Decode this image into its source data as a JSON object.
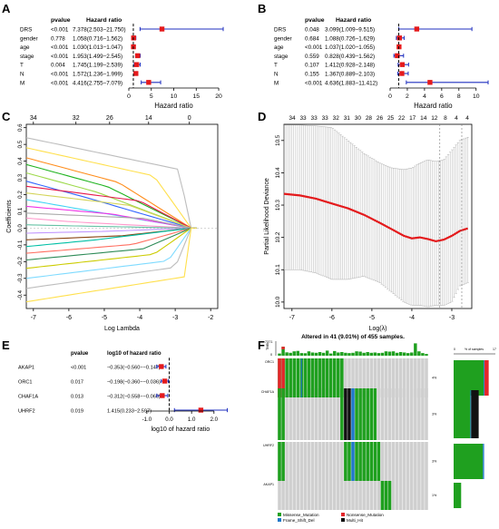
{
  "panels": {
    "A": "A",
    "B": "B",
    "C": "C",
    "D": "D",
    "E": "E",
    "F": "F"
  },
  "chart_data": [
    {
      "panel": "A",
      "type": "scatter",
      "subtype": "forest",
      "col_pvalue": "pvalue",
      "col_hr": "Hazard ratio",
      "xlabel": "Hazard ratio",
      "xticks": [
        0,
        5,
        10,
        15,
        20
      ],
      "xlim": [
        0,
        21
      ],
      "ref_line": 1,
      "point_color": "#e41a1c",
      "ci_color": "#1f2fbf",
      "rows": [
        {
          "label": "DRS",
          "p": "<0.001",
          "hr_text": "7.378(2.503−21.750)",
          "hr": 7.378,
          "lo": 2.503,
          "hi": 21.75
        },
        {
          "label": "gender",
          "p": "0.778",
          "hr_text": "1.058(0.716−1.562)",
          "hr": 1.058,
          "lo": 0.716,
          "hi": 1.562
        },
        {
          "label": "age",
          "p": "<0.001",
          "hr_text": "1.030(1.013−1.047)",
          "hr": 1.03,
          "lo": 1.013,
          "hi": 1.047
        },
        {
          "label": "stage",
          "p": "<0.001",
          "hr_text": "1.953(1.499−2.545)",
          "hr": 1.953,
          "lo": 1.499,
          "hi": 2.545
        },
        {
          "label": "T",
          "p": "0.004",
          "hr_text": "1.745(1.199−2.539)",
          "hr": 1.745,
          "lo": 1.199,
          "hi": 2.539
        },
        {
          "label": "N",
          "p": "<0.001",
          "hr_text": "1.572(1.236−1.999)",
          "hr": 1.572,
          "lo": 1.236,
          "hi": 1.999
        },
        {
          "label": "M",
          "p": "<0.001",
          "hr_text": "4.416(2.755−7.079)",
          "hr": 4.416,
          "lo": 2.755,
          "hi": 7.079
        }
      ]
    },
    {
      "panel": "B",
      "type": "scatter",
      "subtype": "forest",
      "col_pvalue": "pvalue",
      "col_hr": "Hazard ratio",
      "xlabel": "Hazard ratio",
      "xticks": [
        0,
        2,
        4,
        6,
        8,
        10
      ],
      "xlim": [
        0,
        11.4
      ],
      "ref_line": 1,
      "point_color": "#e41a1c",
      "ci_color": "#1f2fbf",
      "rows": [
        {
          "label": "DRS",
          "p": "0.048",
          "hr_text": "3.099(1.009−9.515)",
          "hr": 3.099,
          "lo": 1.009,
          "hi": 9.515
        },
        {
          "label": "gender",
          "p": "0.684",
          "hr_text": "1.088(0.726−1.629)",
          "hr": 1.088,
          "lo": 0.726,
          "hi": 1.629
        },
        {
          "label": "age",
          "p": "<0.001",
          "hr_text": "1.037(1.020−1.055)",
          "hr": 1.037,
          "lo": 1.02,
          "hi": 1.055
        },
        {
          "label": "stage",
          "p": "0.559",
          "hr_text": "0.828(0.439−1.562)",
          "hr": 0.828,
          "lo": 0.439,
          "hi": 1.562
        },
        {
          "label": "T",
          "p": "0.107",
          "hr_text": "1.412(0.928−2.148)",
          "hr": 1.412,
          "lo": 0.928,
          "hi": 2.148
        },
        {
          "label": "N",
          "p": "0.155",
          "hr_text": "1.367(0.889−2.103)",
          "hr": 1.367,
          "lo": 0.889,
          "hi": 2.103
        },
        {
          "label": "M",
          "p": "<0.001",
          "hr_text": "4.636(1.883−11.412)",
          "hr": 4.636,
          "lo": 1.883,
          "hi": 11.412
        }
      ]
    },
    {
      "panel": "C",
      "type": "line",
      "subtype": "lasso-coefficient-paths",
      "xlabel": "Log Lambda",
      "ylabel": "Coefficients",
      "xlim": [
        -7.2,
        -1.8
      ],
      "ylim": [
        -0.48,
        0.62
      ],
      "xticks": [
        -7,
        -6,
        -5,
        -4,
        -3,
        -2
      ],
      "yticks": [
        -0.4,
        -0.3,
        -0.2,
        -0.1,
        0.0,
        0.1,
        0.2,
        0.3,
        0.4,
        0.5,
        0.6
      ],
      "ytick_labels": [
        "-0.4",
        "-0.3",
        "-0.2",
        "-0.1",
        "0.0",
        "0.1",
        "0.2",
        "0.3",
        "0.4",
        "0.5",
        "0.6"
      ],
      "top_ticks": [
        {
          "x": -7,
          "label": "34"
        },
        {
          "x": -5.8,
          "label": "32"
        },
        {
          "x": -4.85,
          "label": "26"
        },
        {
          "x": -3.75,
          "label": "14"
        },
        {
          "x": -2.6,
          "label": "0"
        }
      ],
      "zero_x": -2.55,
      "colors": [
        "#bdbdbd",
        "#ffe04d",
        "#ff8c1a",
        "#1fb31f",
        "#9dd94a",
        "#3366ff",
        "#e6194b",
        "#d4d45a",
        "#42d4f4",
        "#f032e6",
        "#a9a9a9",
        "#ff99cc",
        "#66c2a5",
        "#c299ff",
        "#8b4513",
        "#00bfa5",
        "#ff6f61",
        "#2e8b57",
        "#cccc00",
        "#7fdbff"
      ],
      "paths": [
        {
          "start": 0.54,
          "fade": -2.9
        },
        {
          "start": 0.48,
          "fade": -3.6
        },
        {
          "start": 0.42,
          "fade": -4.6
        },
        {
          "start": 0.38,
          "fade": -4.9
        },
        {
          "start": 0.33,
          "fade": -5.2
        },
        {
          "start": 0.28,
          "fade": -5.5
        },
        {
          "start": 0.25,
          "fade": -4.0
        },
        {
          "start": 0.21,
          "fade": -4.3
        },
        {
          "start": 0.17,
          "fade": -5.6
        },
        {
          "start": 0.13,
          "fade": -4.8
        },
        {
          "start": 0.09,
          "fade": -3.9
        },
        {
          "start": 0.06,
          "fade": -6.0
        },
        {
          "start": 0.02,
          "fade": -5.8
        },
        {
          "start": -0.03,
          "fade": -5.0
        },
        {
          "start": -0.07,
          "fade": -4.5
        },
        {
          "start": -0.11,
          "fade": -5.3
        },
        {
          "start": -0.15,
          "fade": -4.2
        },
        {
          "start": -0.19,
          "fade": -3.9
        },
        {
          "start": -0.24,
          "fade": -3.6
        },
        {
          "start": -0.3,
          "fade": -3.2
        },
        {
          "start": -0.36,
          "fade": -3.0
        },
        {
          "start": -0.44,
          "fade": -2.6
        }
      ]
    },
    {
      "panel": "D",
      "type": "line",
      "subtype": "cross-validation-deviance",
      "xlabel": "Log(λ)",
      "ylabel": "Partial Likelihood Deviance",
      "xlim": [
        -7.2,
        -2.5
      ],
      "ylim": [
        9.98,
        10.55
      ],
      "xticks": [
        -7,
        -6,
        -5,
        -4,
        -3
      ],
      "yticks": [
        10.0,
        10.1,
        10.2,
        10.3,
        10.4,
        10.5
      ],
      "ytick_labels": [
        "10.0",
        "10.1",
        "10.2",
        "10.3",
        "10.4",
        "10.5"
      ],
      "top_labels": [
        "34",
        "33",
        "33",
        "33",
        "32",
        "31",
        "30",
        "28",
        "26",
        "25",
        "22",
        "17",
        "14",
        "12",
        "8",
        "4",
        "4"
      ],
      "vlines": [
        -3.3,
        -2.75
      ],
      "curve": [
        [
          -7.2,
          10.335
        ],
        [
          -6.8,
          10.33
        ],
        [
          -6.4,
          10.32
        ],
        [
          -6.0,
          10.305
        ],
        [
          -5.6,
          10.29
        ],
        [
          -5.2,
          10.27
        ],
        [
          -4.8,
          10.245
        ],
        [
          -4.5,
          10.225
        ],
        [
          -4.2,
          10.205
        ],
        [
          -4.0,
          10.197
        ],
        [
          -3.8,
          10.2
        ],
        [
          -3.6,
          10.195
        ],
        [
          -3.4,
          10.188
        ],
        [
          -3.2,
          10.193
        ],
        [
          -3.0,
          10.205
        ],
        [
          -2.8,
          10.22
        ],
        [
          -2.6,
          10.228
        ]
      ],
      "upper": [
        [
          -7.2,
          10.548
        ],
        [
          -6.8,
          10.548
        ],
        [
          -6.4,
          10.545
        ],
        [
          -6.0,
          10.54
        ],
        [
          -5.6,
          10.5
        ],
        [
          -5.2,
          10.46
        ],
        [
          -4.8,
          10.43
        ],
        [
          -4.5,
          10.415
        ],
        [
          -4.2,
          10.41
        ],
        [
          -4.0,
          10.415
        ],
        [
          -3.8,
          10.43
        ],
        [
          -3.6,
          10.44
        ],
        [
          -3.4,
          10.435
        ],
        [
          -3.2,
          10.44
        ],
        [
          -3.0,
          10.47
        ],
        [
          -2.8,
          10.5
        ],
        [
          -2.6,
          10.51
        ]
      ],
      "lower": [
        [
          -7.2,
          10.1
        ],
        [
          -6.8,
          10.1
        ],
        [
          -6.4,
          10.09
        ],
        [
          -6.0,
          10.07
        ],
        [
          -5.6,
          10.07
        ],
        [
          -5.2,
          10.08
        ],
        [
          -4.8,
          10.06
        ],
        [
          -4.5,
          10.03
        ],
        [
          -4.2,
          10.0
        ],
        [
          -4.0,
          9.99
        ],
        [
          -3.8,
          9.99
        ],
        [
          -3.6,
          9.985
        ],
        [
          -3.4,
          9.99
        ],
        [
          -3.2,
          9.99
        ],
        [
          -3.0,
          10.0
        ],
        [
          -2.8,
          10.05
        ],
        [
          -2.6,
          10.06
        ]
      ]
    },
    {
      "panel": "E",
      "type": "scatter",
      "subtype": "forest",
      "col_pvalue": "pvalue",
      "col_hr": "log10 of hazard ratio",
      "xlabel": "log10 of hazard ratio",
      "xticks": [
        -1.0,
        0.0,
        1.0,
        2.0
      ],
      "xtick_labels": [
        "-1.0",
        "0.0",
        "1.0",
        "2.0"
      ],
      "xlim": [
        -1.4,
        2.9
      ],
      "ref_line": 0,
      "point_color": "#e41a1c",
      "ci_color": "#1f2fbf",
      "rows": [
        {
          "label": "AKAP1",
          "p": "<0.001",
          "hr_text": "−0.353(−0.560−−0.147)",
          "hr": -0.353,
          "lo": -0.56,
          "hi": -0.147
        },
        {
          "label": "ORC1",
          "p": "0.017",
          "hr_text": "−0.198(−0.360−−0.036)",
          "hr": -0.198,
          "lo": -0.36,
          "hi": -0.036
        },
        {
          "label": "CHAF1A",
          "p": "0.013",
          "hr_text": "−0.312(−0.558−−0.066)",
          "hr": -0.312,
          "lo": -0.558,
          "hi": -0.066
        },
        {
          "label": "UHRF2",
          "p": "0.019",
          "hr_text": "1.415(0.233−2.597)",
          "hr": 1.415,
          "lo": 0.233,
          "hi": 2.597
        }
      ]
    },
    {
      "panel": "F",
      "type": "heatmap",
      "subtype": "oncoprint",
      "title": "Altered in 41 (9.01%) of 455 samples.",
      "tmb_axis_top": "7371",
      "tmb_axis_bottom": "0",
      "tmb_label": "TMB",
      "pct_axis_label": "% of samples",
      "pct_axis_min": "0",
      "pct_axis_max": "17",
      "genes": [
        "ORC1",
        "CHAF1A",
        "UHRF2",
        "AKAP1"
      ],
      "percents": [
        "4%",
        "3%",
        "3%",
        "1%"
      ],
      "n_samples": 41,
      "tmb": [
        0.15,
        0.62,
        0.23,
        0.2,
        0.3,
        0.33,
        0.18,
        0.17,
        0.3,
        0.22,
        0.2,
        0.25,
        0.2,
        0.35,
        0.15,
        0.32,
        0.22,
        0.25,
        0.2,
        0.18,
        0.2,
        0.3,
        0.28,
        0.2,
        0.25,
        0.2,
        0.22,
        0.18,
        0.2,
        0.3,
        0.28,
        0.3,
        0.2,
        0.25,
        0.22,
        0.18,
        0.22,
        0.85,
        0.3,
        0.18,
        0.12
      ],
      "calls": {
        "ORC1": [
          [
            "mis",
            0
          ],
          [
            "non",
            0
          ],
          [
            "mis",
            1
          ],
          [
            "non",
            1
          ],
          [
            "mis",
            2
          ],
          [
            "mis",
            3
          ],
          [
            "mis",
            4
          ],
          [
            "mis",
            5
          ],
          [
            "mis",
            6
          ],
          [
            "fs",
            6
          ],
          [
            "mis",
            7
          ],
          [
            "mis",
            8
          ],
          [
            "mis",
            9
          ],
          [
            "mis",
            10
          ],
          [
            "mis",
            11
          ],
          [
            "mis",
            12
          ],
          [
            "mis",
            13
          ],
          [
            "mis",
            14
          ],
          [
            "mis",
            15
          ],
          [
            "mis",
            16
          ],
          [
            "mis",
            17
          ]
        ],
        "CHAF1A": [
          [
            "mis",
            0
          ],
          [
            "mis",
            1
          ],
          [
            "mis",
            17
          ],
          [
            "multi",
            18
          ],
          [
            "multi",
            19
          ],
          [
            "fs",
            20
          ],
          [
            "mis",
            21
          ],
          [
            "mis",
            22
          ],
          [
            "mis",
            23
          ],
          [
            "mis",
            24
          ],
          [
            "mis",
            25
          ],
          [
            "mis",
            26
          ]
        ],
        "UHRF2": [
          [
            "mis",
            0
          ],
          [
            "mis",
            1
          ],
          [
            "mis",
            18
          ],
          [
            "mis",
            19
          ],
          [
            "fs",
            20
          ],
          [
            "mis",
            21
          ],
          [
            "mis",
            22
          ],
          [
            "mis",
            23
          ],
          [
            "mis",
            24
          ],
          [
            "mis",
            25
          ],
          [
            "mis",
            26
          ],
          [
            "mis",
            27
          ]
        ],
        "AKAP1": [
          [
            "mis",
            28
          ],
          [
            "mis",
            29
          ],
          [
            "mis",
            30
          ]
        ]
      },
      "bars": [
        {
          "gene": "ORC1",
          "mis": 0.72,
          "non": 0.1,
          "fs": 0.02,
          "multi": 0
        },
        {
          "gene": "CHAF1A",
          "mis": 0.4,
          "non": 0,
          "fs": 0.02,
          "multi": 0.18
        },
        {
          "gene": "UHRF2",
          "mis": 0.7,
          "non": 0,
          "fs": 0.03,
          "multi": 0
        },
        {
          "gene": "AKAP1",
          "mis": 0.18,
          "non": 0,
          "fs": 0,
          "multi": 0
        }
      ],
      "legend": [
        {
          "key": "mis",
          "label": "Missense_Mutation",
          "color": "#1fa01f"
        },
        {
          "key": "non",
          "label": "Nonsense_Mutation",
          "color": "#e4262a"
        },
        {
          "key": "fs",
          "label": "Frame_Shift_Del",
          "color": "#1f78c8"
        },
        {
          "key": "multi",
          "label": "Multi_Hit",
          "color": "#111111"
        }
      ]
    }
  ]
}
